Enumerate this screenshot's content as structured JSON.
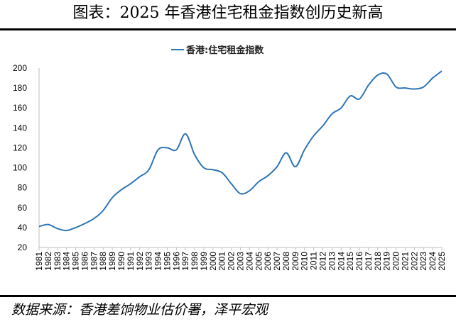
{
  "title": "图表：2025 年香港住宅租金指数创历史新高",
  "source": "数据来源：香港差饷物业估价署，泽平宏观",
  "chart_data": {
    "type": "line",
    "legend_position": "top-center",
    "ylim": [
      20,
      200
    ],
    "yticks": [
      20,
      40,
      60,
      80,
      100,
      120,
      140,
      160,
      180,
      200
    ],
    "grid": false,
    "series_color": "#2E75B6",
    "series": [
      {
        "name": "香港:住宅租金指数",
        "x": [
          "1981",
          "1982",
          "1983",
          "1984",
          "1985",
          "1986",
          "1987",
          "1988",
          "1989",
          "1990",
          "1991",
          "1992",
          "1993",
          "1994",
          "1995",
          "1996",
          "1997",
          "1998",
          "1999",
          "2000",
          "2001",
          "2002",
          "2003",
          "2004",
          "2005",
          "2006",
          "2007",
          "2008",
          "2009",
          "2010",
          "2011",
          "2012",
          "2013",
          "2014",
          "2015",
          "2016",
          "2017",
          "2018",
          "2019",
          "2020",
          "2021",
          "2022",
          "2023",
          "2024",
          "2025"
        ],
        "values": [
          41,
          43,
          39,
          37,
          40,
          44,
          49,
          57,
          70,
          78,
          84,
          91,
          98,
          118,
          120,
          118,
          134,
          113,
          100,
          98,
          95,
          84,
          74,
          77,
          86,
          92,
          101,
          115,
          101,
          118,
          132,
          142,
          154,
          160,
          172,
          169,
          183,
          193,
          194,
          181,
          180,
          179,
          181,
          190,
          197
        ]
      }
    ]
  }
}
